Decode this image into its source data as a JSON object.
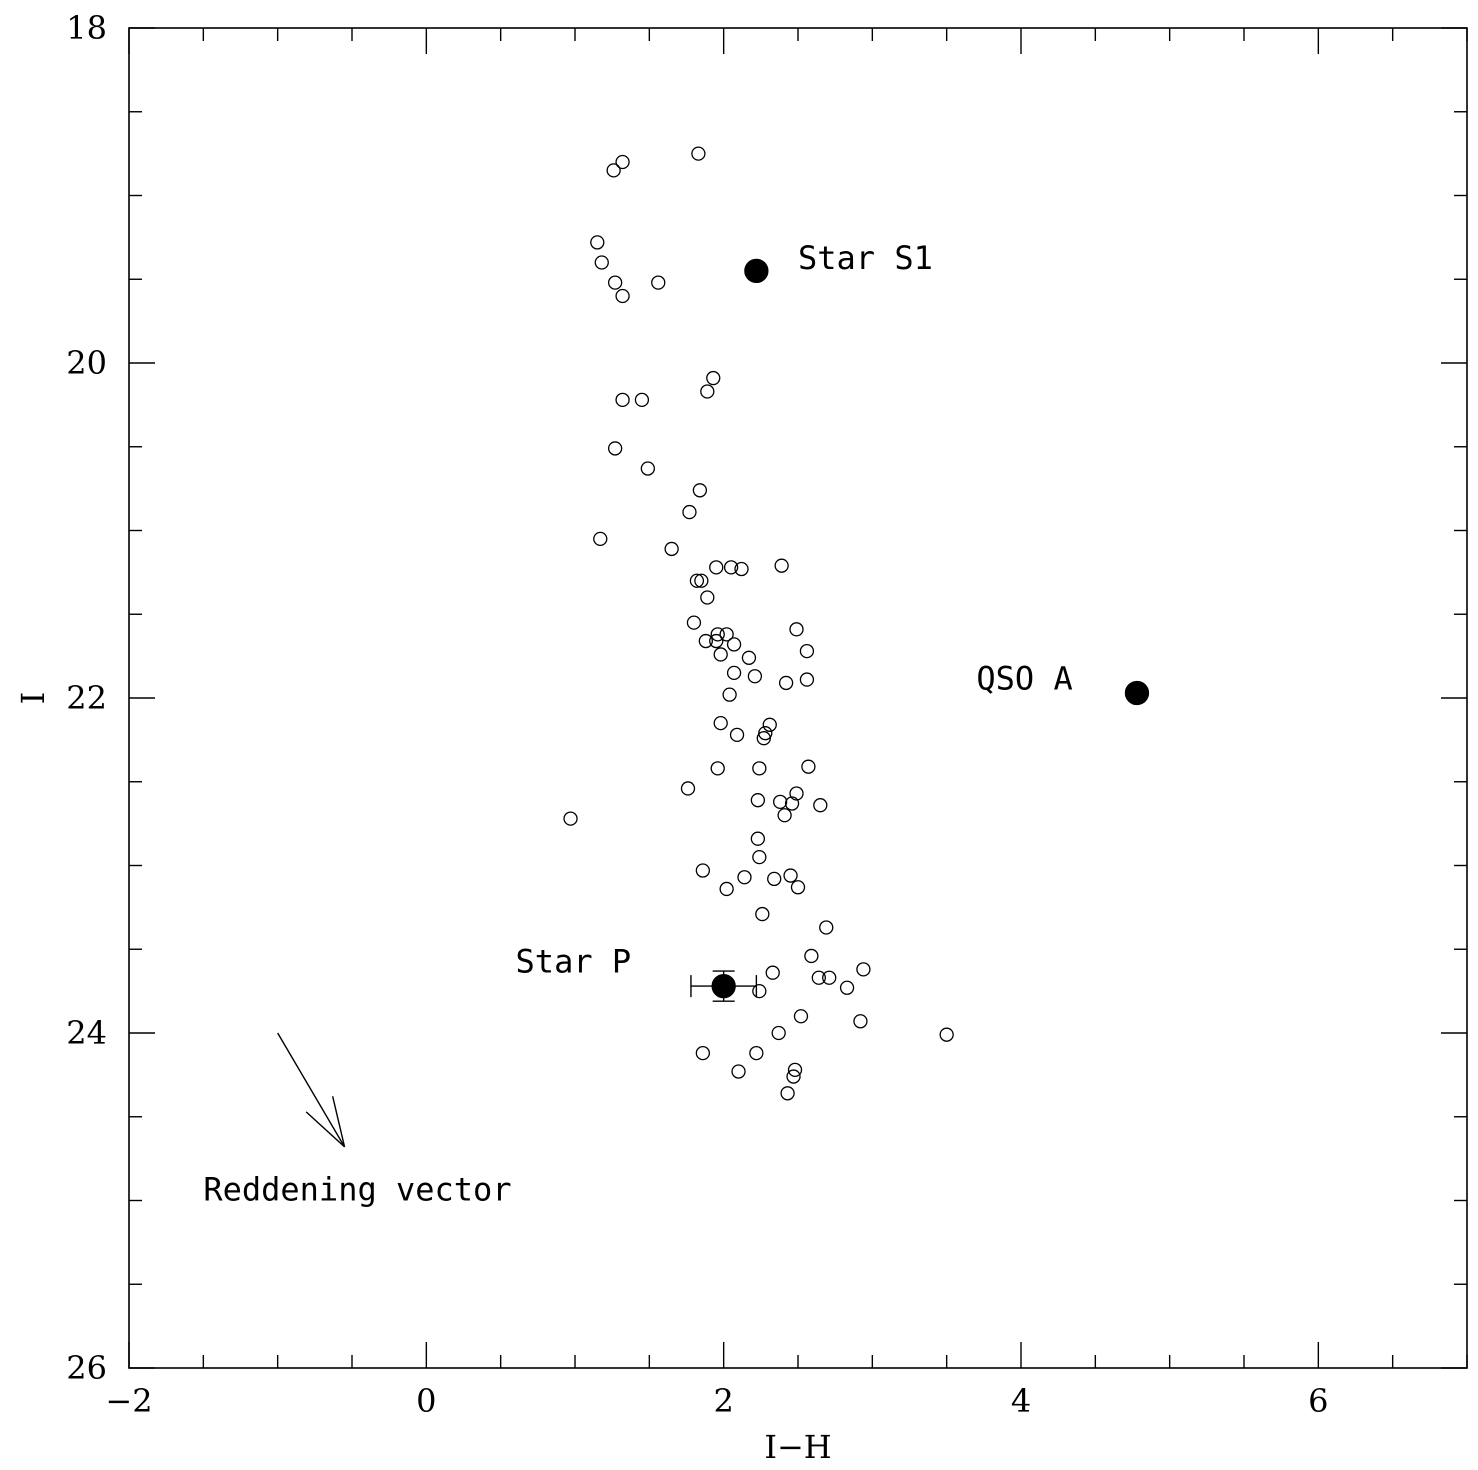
{
  "chart_data": {
    "type": "scatter",
    "xlabel": "I−H",
    "ylabel": "I",
    "xlim": [
      -2,
      7
    ],
    "ylim": [
      26,
      18
    ],
    "y_inverted": true,
    "grid": false,
    "xticks_major": [
      -2,
      0,
      2,
      4,
      6
    ],
    "xtick_labels": [
      "−2",
      "0",
      "2",
      "4",
      "6"
    ],
    "yticks_major": [
      18,
      20,
      22,
      24,
      26
    ],
    "ytick_labels": [
      "18",
      "20",
      "22",
      "24",
      "26"
    ],
    "series": [
      {
        "marker": "open-circle",
        "points": [
          [
            1.83,
            18.75
          ],
          [
            1.32,
            18.8
          ],
          [
            1.26,
            18.85
          ],
          [
            1.15,
            19.28
          ],
          [
            1.18,
            19.4
          ],
          [
            1.27,
            19.52
          ],
          [
            1.32,
            19.6
          ],
          [
            1.56,
            19.52
          ],
          [
            1.93,
            20.09
          ],
          [
            1.89,
            20.17
          ],
          [
            1.32,
            20.22
          ],
          [
            1.45,
            20.22
          ],
          [
            1.27,
            20.51
          ],
          [
            1.49,
            20.63
          ],
          [
            1.84,
            20.76
          ],
          [
            1.77,
            20.89
          ],
          [
            1.17,
            21.05
          ],
          [
            1.65,
            21.11
          ],
          [
            1.95,
            21.22
          ],
          [
            2.05,
            21.22
          ],
          [
            2.12,
            21.23
          ],
          [
            2.39,
            21.21
          ],
          [
            1.82,
            21.3
          ],
          [
            1.85,
            21.3
          ],
          [
            1.89,
            21.4
          ],
          [
            1.8,
            21.55
          ],
          [
            1.96,
            21.62
          ],
          [
            2.02,
            21.62
          ],
          [
            1.88,
            21.66
          ],
          [
            1.95,
            21.66
          ],
          [
            2.49,
            21.59
          ],
          [
            2.07,
            21.68
          ],
          [
            2.56,
            21.72
          ],
          [
            1.98,
            21.74
          ],
          [
            2.17,
            21.76
          ],
          [
            2.07,
            21.85
          ],
          [
            2.21,
            21.87
          ],
          [
            2.42,
            21.91
          ],
          [
            2.56,
            21.89
          ],
          [
            2.04,
            21.98
          ],
          [
            1.98,
            22.15
          ],
          [
            2.31,
            22.16
          ],
          [
            2.28,
            22.21
          ],
          [
            2.09,
            22.22
          ],
          [
            2.27,
            22.24
          ],
          [
            2.57,
            22.41
          ],
          [
            1.96,
            22.42
          ],
          [
            2.24,
            22.42
          ],
          [
            1.76,
            22.54
          ],
          [
            2.49,
            22.57
          ],
          [
            2.23,
            22.61
          ],
          [
            2.38,
            22.62
          ],
          [
            2.46,
            22.63
          ],
          [
            2.65,
            22.64
          ],
          [
            2.41,
            22.7
          ],
          [
            0.97,
            22.72
          ],
          [
            2.23,
            22.84
          ],
          [
            2.24,
            22.95
          ],
          [
            1.86,
            23.03
          ],
          [
            2.14,
            23.07
          ],
          [
            2.34,
            23.08
          ],
          [
            2.45,
            23.06
          ],
          [
            2.5,
            23.13
          ],
          [
            2.02,
            23.14
          ],
          [
            2.26,
            23.29
          ],
          [
            2.69,
            23.37
          ],
          [
            2.59,
            23.54
          ],
          [
            2.33,
            23.64
          ],
          [
            2.94,
            23.62
          ],
          [
            2.64,
            23.67
          ],
          [
            2.71,
            23.67
          ],
          [
            2.24,
            23.75
          ],
          [
            2.83,
            23.73
          ],
          [
            2.52,
            23.9
          ],
          [
            2.92,
            23.93
          ],
          [
            2.37,
            24.0
          ],
          [
            3.5,
            24.01
          ],
          [
            1.86,
            24.12
          ],
          [
            2.22,
            24.12
          ],
          [
            2.48,
            24.22
          ],
          [
            2.1,
            24.23
          ],
          [
            2.47,
            24.26
          ],
          [
            2.43,
            24.36
          ]
        ]
      },
      {
        "marker": "filled-circle",
        "points": [
          [
            2.22,
            19.45
          ],
          [
            4.78,
            21.97
          ],
          [
            2.0,
            23.72
          ]
        ]
      }
    ],
    "error_bars": [
      {
        "x": 2.0,
        "y": 23.72,
        "xerr": 0.22,
        "yerr": 0.09
      }
    ],
    "annotations": [
      {
        "text": "Star S1",
        "x": 2.5,
        "y": 19.44
      },
      {
        "text": "QSO A",
        "x": 3.7,
        "y": 21.95
      },
      {
        "text": "Star P",
        "x": 0.6,
        "y": 23.64
      },
      {
        "text": "Reddening vector",
        "x": -1.5,
        "y": 25.0
      }
    ],
    "reddening_vector": {
      "from": [
        -1.0,
        24.0
      ],
      "to": [
        -0.55,
        24.68
      ]
    }
  }
}
